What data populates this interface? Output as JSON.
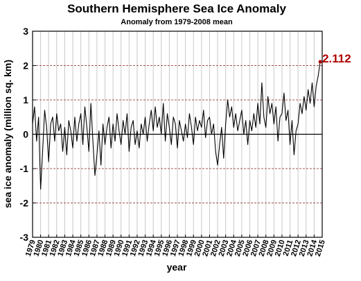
{
  "chart_data": {
    "type": "line",
    "title": "Southern Hemisphere Sea Ice Anomaly",
    "subtitle": "Anomaly from 1979-2008 mean",
    "xlabel": "year",
    "ylabel": "sea ice anomaly (million sq. km)",
    "xlim": [
      1979,
      2015
    ],
    "ylim": [
      -3,
      3
    ],
    "xticks": [
      1979,
      1980,
      1981,
      1982,
      1983,
      1984,
      1985,
      1986,
      1987,
      1988,
      1989,
      1990,
      1991,
      1992,
      1993,
      1994,
      1995,
      1996,
      1997,
      1998,
      1999,
      2000,
      2001,
      2002,
      2003,
      2004,
      2005,
      2006,
      2007,
      2008,
      2009,
      2010,
      2011,
      2012,
      2013,
      2014,
      2015
    ],
    "yticks": [
      -3,
      -2,
      -1,
      0,
      1,
      2,
      3
    ],
    "grid": true,
    "annotation": {
      "label": "2.112",
      "value": 2.112,
      "x": 2014.75,
      "color": "#b00000"
    },
    "series": [
      {
        "color": "#000000",
        "x": [
          1979,
          1979.25,
          1979.5,
          1979.75,
          1980,
          1980.25,
          1980.5,
          1980.75,
          1981,
          1981.25,
          1981.5,
          1981.75,
          1982,
          1982.25,
          1982.5,
          1982.75,
          1983,
          1983.25,
          1983.5,
          1983.75,
          1984,
          1984.25,
          1984.5,
          1984.75,
          1985,
          1985.25,
          1985.5,
          1985.75,
          1986,
          1986.25,
          1986.5,
          1986.75,
          1987,
          1987.25,
          1987.5,
          1987.75,
          1988,
          1988.25,
          1988.5,
          1988.75,
          1989,
          1989.25,
          1989.5,
          1989.75,
          1990,
          1990.25,
          1990.5,
          1990.75,
          1991,
          1991.25,
          1991.5,
          1991.75,
          1992,
          1992.25,
          1992.5,
          1992.75,
          1993,
          1993.25,
          1993.5,
          1993.75,
          1994,
          1994.25,
          1994.5,
          1994.75,
          1995,
          1995.25,
          1995.5,
          1995.75,
          1996,
          1996.25,
          1996.5,
          1996.75,
          1997,
          1997.25,
          1997.5,
          1997.75,
          1998,
          1998.25,
          1998.5,
          1998.75,
          1999,
          1999.25,
          1999.5,
          1999.75,
          2000,
          2000.25,
          2000.5,
          2000.75,
          2001,
          2001.25,
          2001.5,
          2001.75,
          2002,
          2002.25,
          2002.5,
          2002.75,
          2003,
          2003.25,
          2003.5,
          2003.75,
          2004,
          2004.25,
          2004.5,
          2004.75,
          2005,
          2005.25,
          2005.5,
          2005.75,
          2006,
          2006.25,
          2006.5,
          2006.75,
          2007,
          2007.25,
          2007.5,
          2007.75,
          2008,
          2008.25,
          2008.5,
          2008.75,
          2009,
          2009.25,
          2009.5,
          2009.75,
          2010,
          2010.25,
          2010.5,
          2010.75,
          2011,
          2011.25,
          2011.5,
          2011.75,
          2012,
          2012.25,
          2012.5,
          2012.75,
          2013,
          2013.25,
          2013.5,
          2013.75,
          2014,
          2014.25,
          2014.5,
          2014.75
        ],
        "values": [
          0.3,
          0.8,
          -0.2,
          0.5,
          -1.6,
          -0.5,
          0.7,
          0.2,
          -0.8,
          0.3,
          0.5,
          -0.2,
          0.6,
          0.1,
          0.3,
          -0.5,
          0.2,
          -0.6,
          0.4,
          0.1,
          -0.4,
          0.5,
          -0.2,
          0.3,
          0.6,
          -0.3,
          0.8,
          0.2,
          -0.5,
          0.9,
          -0.2,
          -1.2,
          -0.6,
          0.1,
          -0.9,
          0.3,
          -0.3,
          0.2,
          0.5,
          -0.4,
          0.3,
          -0.2,
          0.6,
          0.1,
          -0.3,
          0.4,
          0.0,
          0.6,
          -0.5,
          0.2,
          0.4,
          -0.3,
          0.1,
          -0.4,
          0.3,
          0.0,
          0.5,
          -0.2,
          0.3,
          0.7,
          0.1,
          0.8,
          0.2,
          0.5,
          0.0,
          0.9,
          -0.2,
          0.6,
          0.2,
          -0.3,
          0.5,
          0.3,
          -0.4,
          0.4,
          0.1,
          -0.2,
          0.3,
          -0.1,
          0.6,
          0.2,
          -0.3,
          0.5,
          0.1,
          0.4,
          0.2,
          0.7,
          -0.1,
          0.4,
          0.5,
          0.0,
          0.3,
          -0.5,
          -0.9,
          -0.3,
          0.2,
          -0.7,
          0.3,
          1.0,
          0.5,
          0.8,
          0.2,
          0.6,
          0.1,
          0.4,
          0.7,
          0.0,
          0.4,
          -0.3,
          0.4,
          0.1,
          0.6,
          0.2,
          0.9,
          0.3,
          1.5,
          0.5,
          0.2,
          1.1,
          0.6,
          0.9,
          0.3,
          0.8,
          -0.2,
          0.5,
          0.6,
          1.2,
          0.4,
          0.7,
          -0.3,
          0.4,
          -0.6,
          0.1,
          0.3,
          0.9,
          0.6,
          1.1,
          0.7,
          1.3,
          0.9,
          1.5,
          0.8,
          1.4,
          1.7,
          2.112
        ]
      }
    ]
  }
}
